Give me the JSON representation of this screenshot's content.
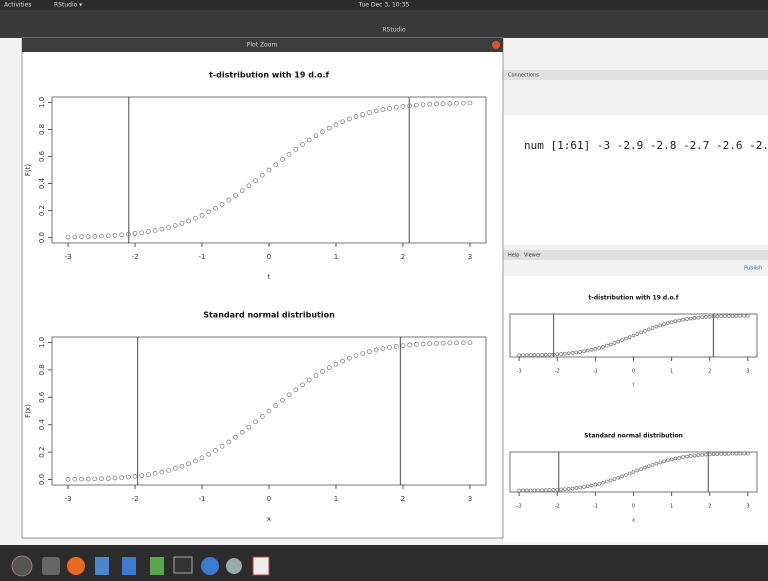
{
  "topbar": {
    "activities": "Activities",
    "app": "RStudio ▾",
    "clock": "Tue Dec 3, 10:35"
  },
  "window": {
    "title": "RStudio",
    "zoom_title": "Plot Zoom",
    "console_output": "num [1:61] -3 -2.9 -2.8 -2.7 -2.6 -2...",
    "env_tab": "Connections",
    "help_tab": "Help",
    "viewer_tab": "Viewer",
    "publish": "Publish"
  },
  "chart_data": [
    {
      "type": "scatter",
      "title": "t-distribution with 19 d.o.f",
      "x_label": "t",
      "y_label": "F(t)",
      "x": [
        -3,
        -2.9,
        -2.8,
        -2.7,
        -2.6,
        -2.5,
        -2.4,
        -2.3,
        -2.2,
        -2.1,
        -2,
        -1.9,
        -1.8,
        -1.7,
        -1.6,
        -1.5,
        -1.4,
        -1.3,
        -1.2,
        -1.1,
        -1,
        -0.9,
        -0.8,
        -0.7,
        -0.6,
        -0.5,
        -0.4,
        -0.3,
        -0.2,
        -0.1,
        0,
        0.1,
        0.2,
        0.3,
        0.4,
        0.5,
        0.6,
        0.7,
        0.8,
        0.9,
        1,
        1.1,
        1.2,
        1.3,
        1.4,
        1.5,
        1.6,
        1.7,
        1.8,
        1.9,
        2,
        2.1,
        2.2,
        2.3,
        2.4,
        2.5,
        2.6,
        2.7,
        2.8,
        2.9,
        3
      ],
      "values": [
        0.004,
        0.005,
        0.006,
        0.007,
        0.009,
        0.011,
        0.013,
        0.017,
        0.02,
        0.025,
        0.03,
        0.036,
        0.044,
        0.053,
        0.063,
        0.075,
        0.089,
        0.105,
        0.123,
        0.143,
        0.165,
        0.19,
        0.217,
        0.246,
        0.278,
        0.311,
        0.347,
        0.384,
        0.422,
        0.461,
        0.5,
        0.539,
        0.578,
        0.616,
        0.653,
        0.689,
        0.722,
        0.754,
        0.783,
        0.81,
        0.835,
        0.857,
        0.877,
        0.895,
        0.911,
        0.925,
        0.937,
        0.947,
        0.956,
        0.964,
        0.97,
        0.975,
        0.98,
        0.983,
        0.987,
        0.989,
        0.991,
        0.993,
        0.994,
        0.995,
        0.996
      ],
      "vlines": [
        -2.093,
        2.093
      ],
      "color": "#777777",
      "xlim": [
        -3.24,
        3.24
      ],
      "ylim": [
        -0.04,
        1.04
      ],
      "xticks": [
        -3,
        -2,
        -1,
        0,
        1,
        2,
        3
      ],
      "yticks": [
        {
          "value": 0,
          "label": "0.0"
        },
        0.2,
        0.4,
        0.6,
        0.8,
        {
          "value": 1,
          "label": "1.0"
        }
      ]
    },
    {
      "type": "scatter",
      "title": "Standard normal distribution",
      "x_label": "x",
      "y_label": "F(x)",
      "x": [
        -3,
        -2.9,
        -2.8,
        -2.7,
        -2.6,
        -2.5,
        -2.4,
        -2.3,
        -2.2,
        -2.1,
        -2,
        -1.9,
        -1.8,
        -1.7,
        -1.6,
        -1.5,
        -1.4,
        -1.3,
        -1.2,
        -1.1,
        -1,
        -0.9,
        -0.8,
        -0.7,
        -0.6,
        -0.5,
        -0.4,
        -0.3,
        -0.2,
        -0.1,
        0,
        0.1,
        0.2,
        0.3,
        0.4,
        0.5,
        0.6,
        0.7,
        0.8,
        0.9,
        1,
        1.1,
        1.2,
        1.3,
        1.4,
        1.5,
        1.6,
        1.7,
        1.8,
        1.9,
        2,
        2.1,
        2.2,
        2.3,
        2.4,
        2.5,
        2.6,
        2.7,
        2.8,
        2.9,
        3
      ],
      "values": [
        0.001,
        0.002,
        0.003,
        0.003,
        0.005,
        0.006,
        0.008,
        0.011,
        0.014,
        0.018,
        0.023,
        0.029,
        0.036,
        0.045,
        0.055,
        0.067,
        0.081,
        0.097,
        0.115,
        0.136,
        0.159,
        0.184,
        0.212,
        0.242,
        0.274,
        0.309,
        0.345,
        0.382,
        0.421,
        0.46,
        0.5,
        0.54,
        0.579,
        0.618,
        0.655,
        0.691,
        0.726,
        0.758,
        0.788,
        0.816,
        0.841,
        0.864,
        0.885,
        0.903,
        0.919,
        0.933,
        0.945,
        0.955,
        0.964,
        0.971,
        0.977,
        0.982,
        0.986,
        0.989,
        0.992,
        0.994,
        0.995,
        0.997,
        0.997,
        0.998,
        0.999
      ],
      "vlines": [
        -1.96,
        1.96
      ],
      "color": "#777777",
      "xlim": [
        -3.24,
        3.24
      ],
      "ylim": [
        -0.04,
        1.04
      ],
      "xticks": [
        -3,
        -2,
        -1,
        0,
        1,
        2,
        3
      ],
      "yticks": [
        {
          "value": 0,
          "label": "0.0"
        },
        0.2,
        0.4,
        0.6,
        0.8,
        {
          "value": 1,
          "label": "1.0"
        }
      ]
    }
  ]
}
